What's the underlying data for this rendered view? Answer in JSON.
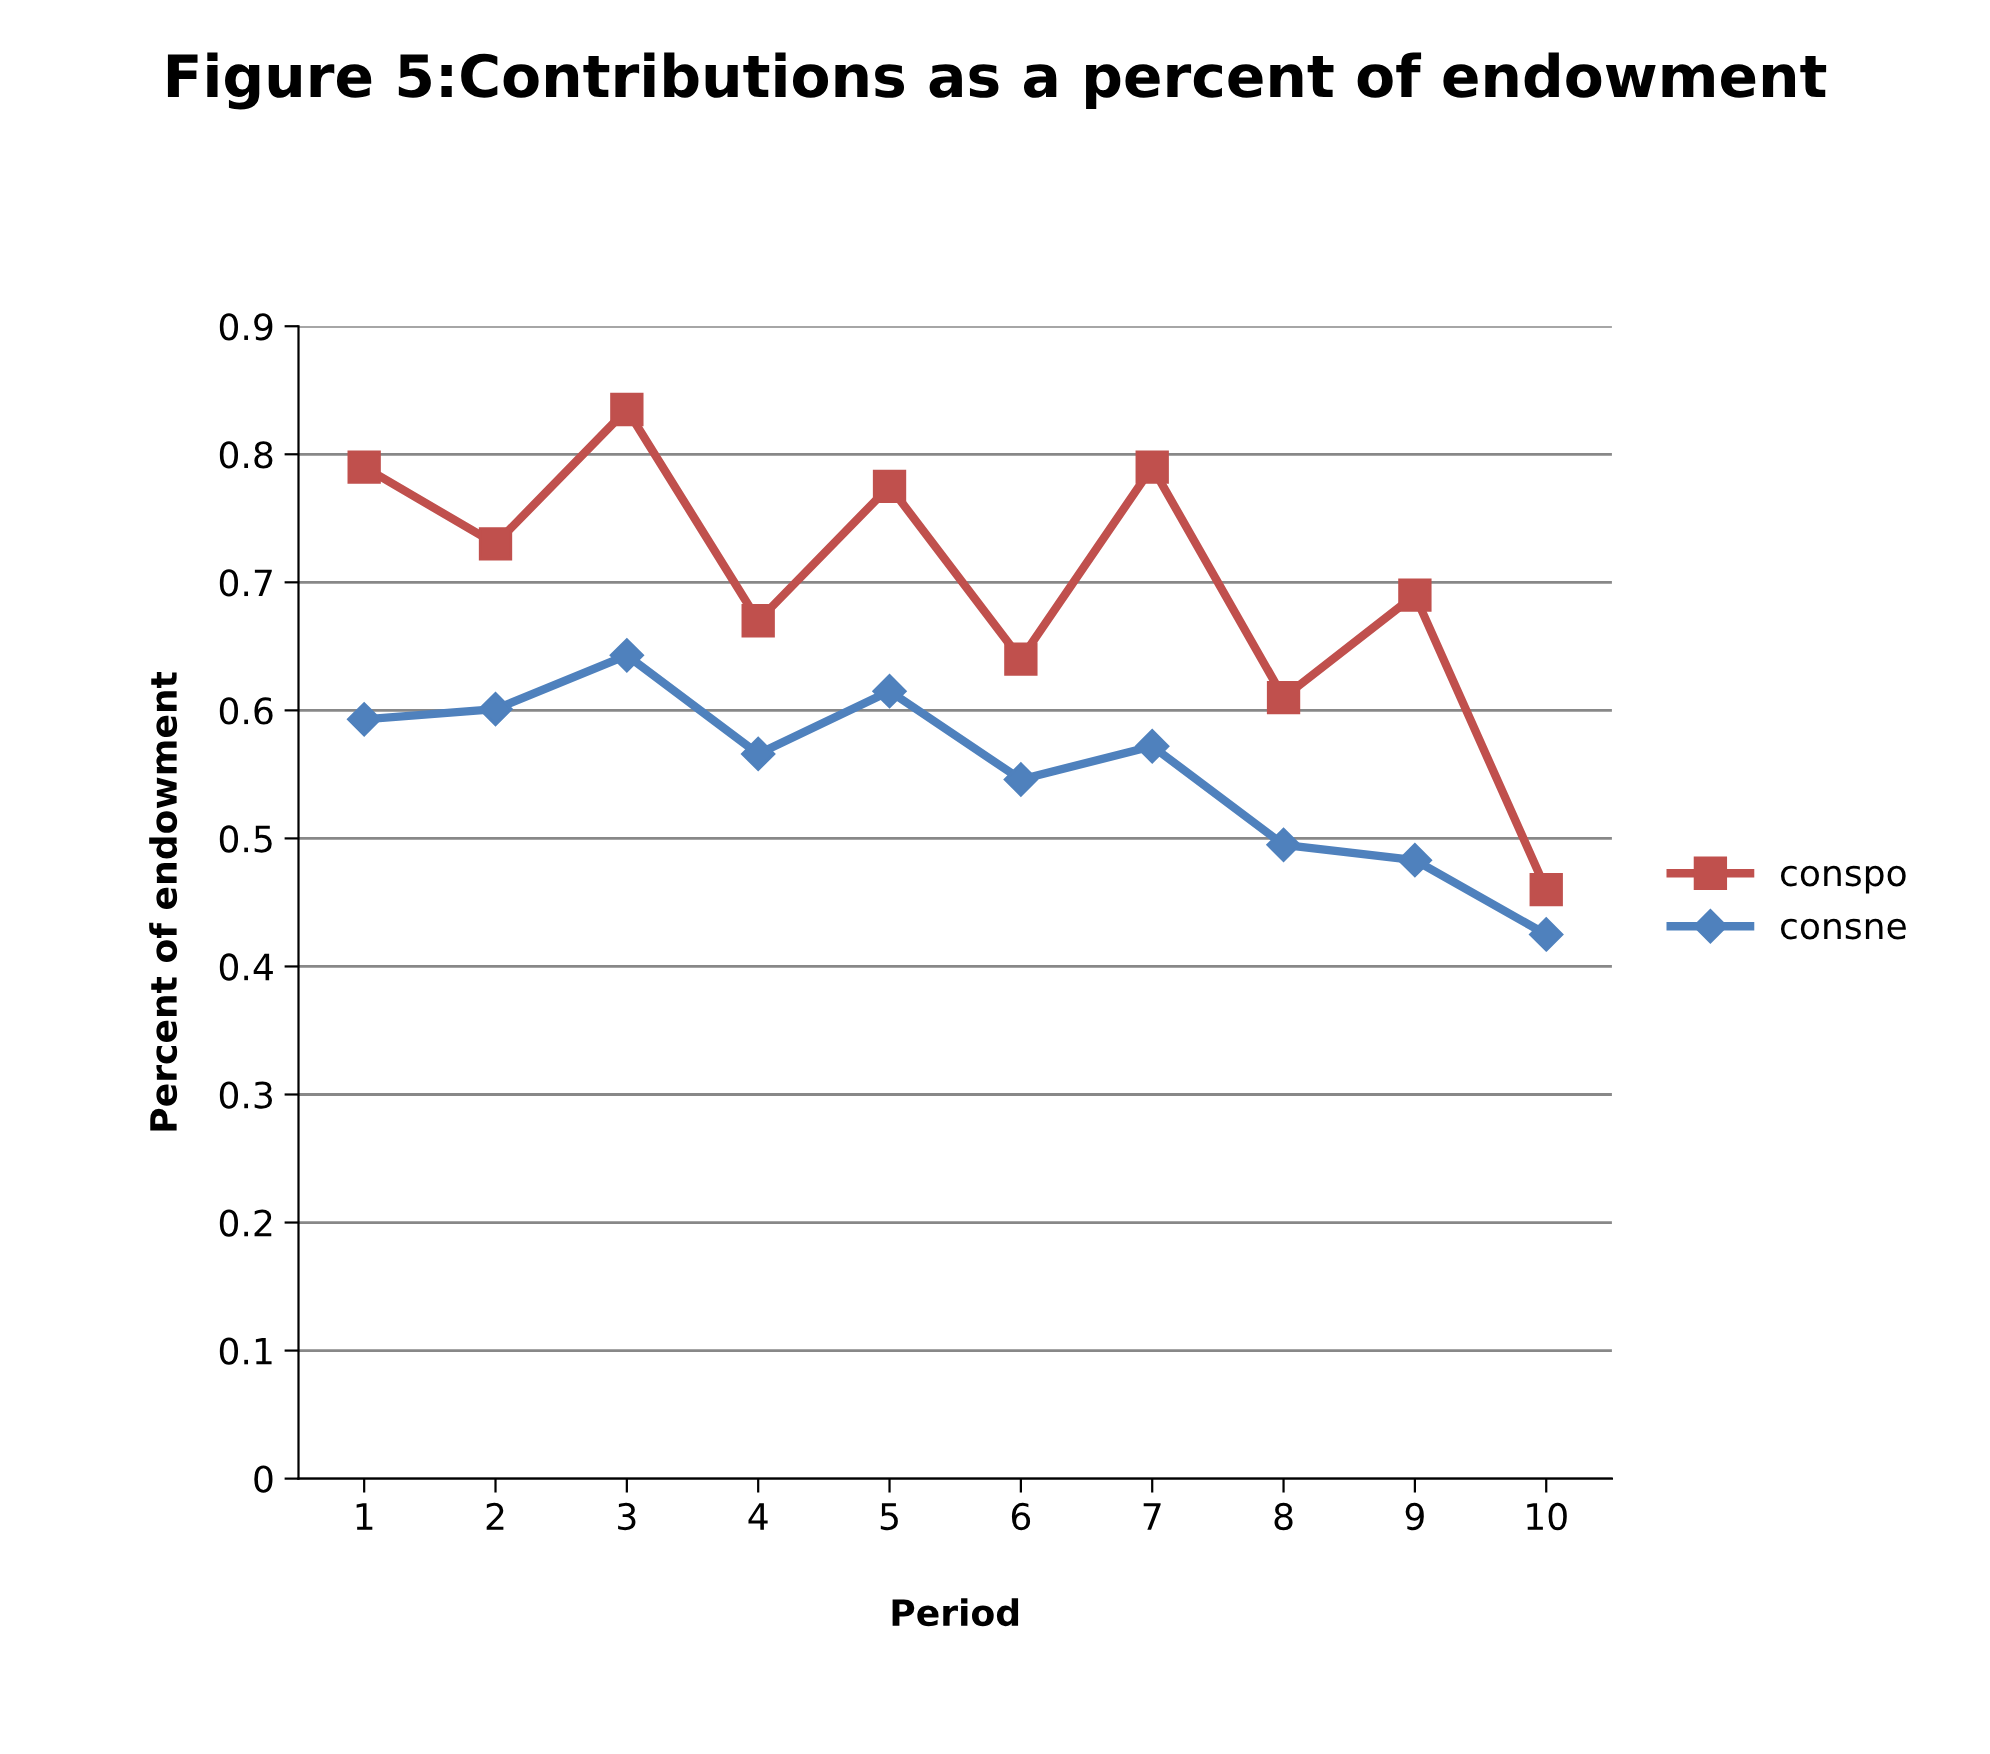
{
  "chart_data": {
    "type": "line",
    "title": "Figure 5:Contributions as a percent of endowment",
    "xlabel": "Period",
    "ylabel": "Percent of endowment",
    "categories": [
      "1",
      "2",
      "3",
      "4",
      "5",
      "6",
      "7",
      "8",
      "9",
      "10"
    ],
    "series": [
      {
        "name": "conspo",
        "color": "#c0504d",
        "marker": "square",
        "values": [
          0.79,
          0.73,
          0.835,
          0.67,
          0.775,
          0.64,
          0.79,
          0.61,
          0.69,
          0.46
        ]
      },
      {
        "name": "consne",
        "color": "#4f81bd",
        "marker": "diamond",
        "values": [
          0.593,
          0.601,
          0.643,
          0.566,
          0.615,
          0.546,
          0.572,
          0.495,
          0.483,
          0.425
        ]
      }
    ],
    "ylim": [
      0,
      0.9
    ],
    "yticks": [
      0,
      0.1,
      0.2,
      0.3,
      0.4,
      0.5,
      0.6,
      0.7,
      0.8,
      0.9
    ],
    "grid": "y",
    "legend": "right",
    "line_style": "solid"
  }
}
